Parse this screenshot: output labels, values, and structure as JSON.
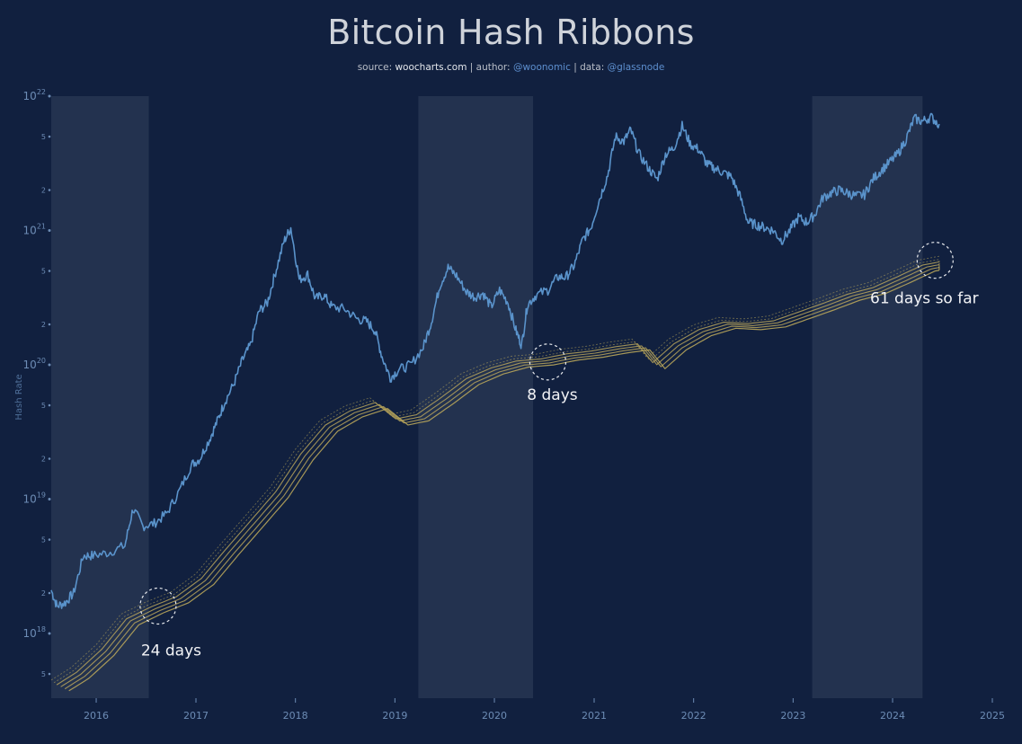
{
  "header": {
    "title": "Bitcoin Hash Ribbons",
    "subtitle": {
      "source_label": "source: ",
      "source": "woocharts.com",
      "author_label": " | author: ",
      "author": "@woonomic",
      "data_label": " | data: ",
      "data": "@glassnode"
    }
  },
  "chart_data": {
    "type": "line",
    "title": "Bitcoin Hash Ribbons",
    "ylabel": "Hash Rate",
    "xlabel": "",
    "yscale": "log",
    "xlim": [
      "2015-07-20",
      "2025-01-01"
    ],
    "ylim": [
      3.3e+17,
      1e+22
    ],
    "x_tick_labels": [
      "2016",
      "2017",
      "2018",
      "2019",
      "2020",
      "2021",
      "2022",
      "2023",
      "2024",
      "2025"
    ],
    "y_major_ticks": [
      {
        "base": "10",
        "exp": "18",
        "value": 1e+18
      },
      {
        "base": "10",
        "exp": "19",
        "value": 1e+19
      },
      {
        "base": "10",
        "exp": "20",
        "value": 1e+20
      },
      {
        "base": "10",
        "exp": "21",
        "value": 1e+21
      },
      {
        "base": "10",
        "exp": "22",
        "value": 1e+22
      }
    ],
    "y_minor_ticks": [
      {
        "label": "5",
        "value": 5e+17
      },
      {
        "label": "2",
        "value": 2e+18
      },
      {
        "label": "5",
        "value": 5e+18
      },
      {
        "label": "2",
        "value": 2e+19
      },
      {
        "label": "5",
        "value": 5e+19
      },
      {
        "label": "2",
        "value": 2e+20
      },
      {
        "label": "5",
        "value": 5e+20
      },
      {
        "label": "2",
        "value": 2e+21
      },
      {
        "label": "5",
        "value": 5e+21
      }
    ],
    "capitulation_periods": [
      {
        "start": "2015-07-20",
        "end": "2016-07-12"
      },
      {
        "start": "2019-03-28",
        "end": "2020-05-22"
      },
      {
        "start": "2023-03-12",
        "end": "2024-04-20"
      }
    ],
    "hash_rate_series": {
      "color": "#5a93cb",
      "points": [
        [
          "2015-07-20",
          2.1e+18
        ],
        [
          "2015-08-10",
          1.6e+18
        ],
        [
          "2015-09-10",
          1.7e+18
        ],
        [
          "2015-10-10",
          2e+18
        ],
        [
          "2015-11-15",
          3.8e+18
        ],
        [
          "2015-12-20",
          3.8e+18
        ],
        [
          "2016-02-15",
          4e+18
        ],
        [
          "2016-04-15",
          4.5e+18
        ],
        [
          "2016-05-15",
          8.5e+18
        ],
        [
          "2016-06-20",
          6.3e+18
        ],
        [
          "2016-08-01",
          6.6e+18
        ],
        [
          "2016-09-15",
          7.8e+18
        ],
        [
          "2016-11-01",
          1.15e+19
        ],
        [
          "2016-12-15",
          1.8e+19
        ],
        [
          "2017-01-15",
          2e+19
        ],
        [
          "2017-02-20",
          2.8e+19
        ],
        [
          "2017-03-20",
          3.8e+19
        ],
        [
          "2017-04-15",
          5.2e+19
        ],
        [
          "2017-05-20",
          7.2e+19
        ],
        [
          "2017-06-20",
          1.08e+20
        ],
        [
          "2017-07-20",
          1.4e+20
        ],
        [
          "2017-08-20",
          2.5e+20
        ],
        [
          "2017-09-20",
          2.9e+20
        ],
        [
          "2017-10-20",
          4.9e+20
        ],
        [
          "2017-11-20",
          8.3e+20
        ],
        [
          "2017-12-15",
          1.05e+21
        ],
        [
          "2018-01-15",
          4.3e+20
        ],
        [
          "2018-02-15",
          4.7e+20
        ],
        [
          "2018-03-15",
          3.1e+20
        ],
        [
          "2018-04-15",
          3.3e+20
        ],
        [
          "2018-05-15",
          2.7e+20
        ],
        [
          "2018-07-01",
          2.6e+20
        ],
        [
          "2018-08-15",
          2.2e+20
        ],
        [
          "2018-09-20",
          2.1e+20
        ],
        [
          "2018-10-20",
          1.8e+20
        ],
        [
          "2018-11-15",
          1.15e+20
        ],
        [
          "2018-12-15",
          8e+19
        ],
        [
          "2019-01-15",
          9.2e+19
        ],
        [
          "2019-03-01",
          1e+20
        ],
        [
          "2019-04-15",
          1.35e+20
        ],
        [
          "2019-05-15",
          2.1e+20
        ],
        [
          "2019-06-15",
          3.9e+20
        ],
        [
          "2019-07-15",
          5.3e+20
        ],
        [
          "2019-08-15",
          4.6e+20
        ],
        [
          "2019-09-20",
          3.5e+20
        ],
        [
          "2019-10-20",
          3.2e+20
        ],
        [
          "2019-11-20",
          3.4e+20
        ],
        [
          "2019-12-20",
          2.7e+20
        ],
        [
          "2020-01-20",
          3.6e+20
        ],
        [
          "2020-02-20",
          2.9e+20
        ],
        [
          "2020-03-20",
          1.8e+20
        ],
        [
          "2020-04-10",
          1.4e+20
        ],
        [
          "2020-05-01",
          2.8e+20
        ],
        [
          "2020-06-01",
          3.3e+20
        ],
        [
          "2020-07-15",
          3.6e+20
        ],
        [
          "2020-08-20",
          4.5e+20
        ],
        [
          "2020-09-20",
          4.5e+20
        ],
        [
          "2020-10-20",
          5.5e+20
        ],
        [
          "2020-11-20",
          8.5e+20
        ],
        [
          "2020-12-20",
          1.05e+21
        ],
        [
          "2021-01-20",
          1.7e+21
        ],
        [
          "2021-02-20",
          2.6e+21
        ],
        [
          "2021-03-20",
          5e+21
        ],
        [
          "2021-04-20",
          4.6e+21
        ],
        [
          "2021-05-15",
          5.6e+21
        ],
        [
          "2021-06-15",
          3.7e+21
        ],
        [
          "2021-07-20",
          2.9e+21
        ],
        [
          "2021-08-20",
          2.4e+21
        ],
        [
          "2021-09-20",
          3.7e+21
        ],
        [
          "2021-10-20",
          4.1e+21
        ],
        [
          "2021-11-20",
          6e+21
        ],
        [
          "2021-12-20",
          4.4e+21
        ],
        [
          "2022-01-20",
          4e+21
        ],
        [
          "2022-02-20",
          3.1e+21
        ],
        [
          "2022-03-20",
          2.9e+21
        ],
        [
          "2022-04-20",
          2.7e+21
        ],
        [
          "2022-05-20",
          2.5e+21
        ],
        [
          "2022-06-20",
          1.8e+21
        ],
        [
          "2022-07-20",
          1.15e+21
        ],
        [
          "2022-08-20",
          1.1e+21
        ],
        [
          "2022-09-20",
          1.05e+21
        ],
        [
          "2022-10-20",
          1e+21
        ],
        [
          "2022-11-20",
          8.4e+20
        ],
        [
          "2022-12-20",
          1e+21
        ],
        [
          "2023-01-20",
          1.25e+21
        ],
        [
          "2023-02-20",
          1.15e+21
        ],
        [
          "2023-03-20",
          1.3e+21
        ],
        [
          "2023-04-20",
          1.75e+21
        ],
        [
          "2023-05-20",
          1.9e+21
        ],
        [
          "2023-06-20",
          2e+21
        ],
        [
          "2023-07-20",
          1.9e+21
        ],
        [
          "2023-08-20",
          1.8e+21
        ],
        [
          "2023-09-20",
          1.85e+21
        ],
        [
          "2023-10-20",
          2.4e+21
        ],
        [
          "2023-11-20",
          2.8e+21
        ],
        [
          "2023-12-20",
          3.2e+21
        ],
        [
          "2024-01-20",
          3.7e+21
        ],
        [
          "2024-02-20",
          4.8e+21
        ],
        [
          "2024-03-20",
          6.8e+21
        ],
        [
          "2024-04-20",
          6.5e+21
        ],
        [
          "2024-05-20",
          7e+21
        ],
        [
          "2024-06-20",
          6.2e+21
        ]
      ]
    },
    "ribbon_series": {
      "color": "#b8a55a",
      "points": [
        [
          "2015-07-20",
          4.2e+17
        ],
        [
          "2015-10-01",
          5.2e+17
        ],
        [
          "2016-01-01",
          7.7e+17
        ],
        [
          "2016-04-01",
          1.3e+18
        ],
        [
          "2016-07-01",
          1.6e+18
        ],
        [
          "2016-10-01",
          1.9e+18
        ],
        [
          "2017-01-01",
          2.6e+18
        ],
        [
          "2017-04-01",
          4.3e+18
        ],
        [
          "2017-07-01",
          7e+18
        ],
        [
          "2017-10-01",
          1.15e+19
        ],
        [
          "2018-01-01",
          2.2e+19
        ],
        [
          "2018-04-01",
          3.6e+19
        ],
        [
          "2018-07-01",
          4.6e+19
        ],
        [
          "2018-10-01",
          5.3e+19
        ],
        [
          "2018-12-15",
          4e+19
        ],
        [
          "2019-03-01",
          4.3e+19
        ],
        [
          "2019-06-01",
          5.8e+19
        ],
        [
          "2019-09-01",
          8e+19
        ],
        [
          "2019-12-01",
          9.6e+19
        ],
        [
          "2020-03-01",
          1.08e+20
        ],
        [
          "2020-06-01",
          1.12e+20
        ],
        [
          "2020-09-01",
          1.22e+20
        ],
        [
          "2020-12-01",
          1.28e+20
        ],
        [
          "2021-03-01",
          1.38e+20
        ],
        [
          "2021-05-20",
          1.45e+20
        ],
        [
          "2021-07-15",
          1.05e+20
        ],
        [
          "2021-10-01",
          1.45e+20
        ],
        [
          "2022-01-01",
          1.85e+20
        ],
        [
          "2022-04-01",
          2.1e+20
        ],
        [
          "2022-07-01",
          2.05e+20
        ],
        [
          "2022-10-01",
          2.15e+20
        ],
        [
          "2023-01-01",
          2.5e+20
        ],
        [
          "2023-04-01",
          2.9e+20
        ],
        [
          "2023-07-01",
          3.4e+20
        ],
        [
          "2023-10-01",
          3.8e+20
        ],
        [
          "2024-01-01",
          4.6e+20
        ],
        [
          "2024-04-01",
          5.6e+20
        ],
        [
          "2024-06-20",
          6e+20
        ]
      ]
    },
    "annotations": [
      {
        "label": "24 days",
        "x": "2016-08-15",
        "y": 1.6e+18
      },
      {
        "label": "8 days",
        "x": "2020-07-15",
        "y": 1.05e+20
      },
      {
        "label": "61 days so far",
        "x": "2024-06-05",
        "y": 6e+20
      }
    ]
  }
}
